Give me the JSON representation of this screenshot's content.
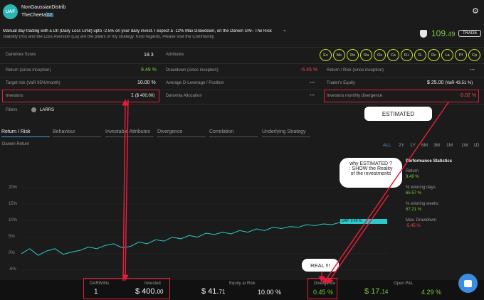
{
  "header": {
    "logo_text": "UAF",
    "darwin_name": "NonGaussianDistrib",
    "trader_name": "TheCheetah",
    "trader_badge": "2.2",
    "description_line1": "Manual day-trading with a DII (Daily Loss Limit) upto -2.5% on your daily invest. I expect a -12% Max Drawdown, on the Darwin UAF. The Risk",
    "description_line2": "Stability (Rs) and the Loss Aversion (La) are the pillars of my strategy. Kind regards, Please visit the Community",
    "score_int": "109.",
    "score_dec": "49",
    "trade_label": "TRADE"
  },
  "stats": {
    "darwinex_score_label": "Darwinex Score",
    "darwinex_score_value": "18.3",
    "attributes_label": "Attributes",
    "return_label": "Return (since inception)",
    "return_value": "9.49 %",
    "drawdown_label": "Drawdown (since inception)",
    "drawdown_value": "-5.45 %",
    "return_risk_label": "Return / Risk (since inception)",
    "return_risk_value": "---",
    "target_risk_label": "Target risk (VaR 95%/month)",
    "target_risk_value": "10.00 %",
    "avg_leverage_label": "Average D-Leverage / Position",
    "avg_leverage_value": "---",
    "traders_equity_label": "Trader's Equity",
    "traders_equity_value": "$ 25.00",
    "traders_equity_var": "(VaR 43.51 %)",
    "investors_label": "Investors",
    "investors_value": "1",
    "investors_amount": "($ 400.00)",
    "darwinia_label": "Darwinia Allocation",
    "darwinia_value": "---",
    "monthly_div_label": "Investors monthly divergence",
    "monthly_div_value": "-0.02 %",
    "filters_label": "Filters",
    "filters_value": "LARRS"
  },
  "attributes": [
    "Ex",
    "Mc",
    "Rs",
    "Ra",
    "Os",
    "Cs",
    "R+",
    "R-",
    "Dc",
    "La",
    "Pf",
    "Cp"
  ],
  "tabs": [
    "Return / Risk",
    "Behaviour",
    "Investable Attributes",
    "Divergence",
    "Correlation",
    "Underlying Strategy"
  ],
  "chart": {
    "title": "Darwin Return",
    "timeframes": [
      "ALL",
      "2Y",
      "1Y",
      "6M",
      "3M",
      "1M",
      "1W",
      "1D"
    ],
    "y_ticks": [
      "20%",
      "15%",
      "10%",
      "5%",
      "0%",
      "-5%"
    ],
    "end_label": "UAF: 9.49 %"
  },
  "chart_data": {
    "type": "line",
    "title": "Darwin Return",
    "ylim": [
      -5,
      20
    ],
    "series": [
      {
        "name": "UAF",
        "values": [
          0,
          1.5,
          -0.5,
          0.8,
          1.5,
          -0.2,
          0.5,
          1,
          2,
          1.5,
          2.5,
          3,
          1.8,
          2.2,
          3.5,
          3,
          4.2,
          3.8,
          5,
          4.5,
          5.5,
          5,
          6.2,
          5.8,
          6.5,
          6,
          7,
          6.5,
          7.5,
          7,
          8,
          7.6,
          8.2,
          8,
          8.8,
          8.5,
          9,
          8.8,
          9.49
        ]
      }
    ]
  },
  "perf": {
    "title": "Performance Statistics",
    "return_label": "Return",
    "return_value": "9.49 %",
    "winning_days_label": "% winning days",
    "winning_days_value": "65.57 %",
    "winning_weeks_label": "% winning weeks",
    "winning_weeks_value": "67.21 %",
    "max_dd_label": "Max. Drawdown",
    "max_dd_value": "-5.45 %"
  },
  "bottom": {
    "darwins_label": "DARWINs",
    "darwins_value": "1",
    "invested_label": "Invested",
    "invested_value": "$ 400.",
    "invested_dec": "00",
    "equity_label": "Equity at Risk",
    "equity_value": "$ 41.",
    "equity_dec": "71",
    "equity_pct": "10.00 %",
    "divergence_label": "Divergence",
    "divergence_value": "0.45 %",
    "open_pl_label": "Open P&L",
    "open_pl_value": "$ 17.",
    "open_pl_dec": "14",
    "open_pl_pct": "4.29 %"
  },
  "annotations": {
    "estimated": "ESTIMATED",
    "why_line1": "why ESTIMATED ?",
    "why_line2": ": SHOW the Reality",
    "why_line3": "of the investments",
    "real": "REAL !!!"
  },
  "colors": {
    "accent": "#3aa3e0",
    "green": "#7ac943",
    "red": "#e8474c",
    "series": "#2bc9c9",
    "annotation": "#e0203a"
  }
}
